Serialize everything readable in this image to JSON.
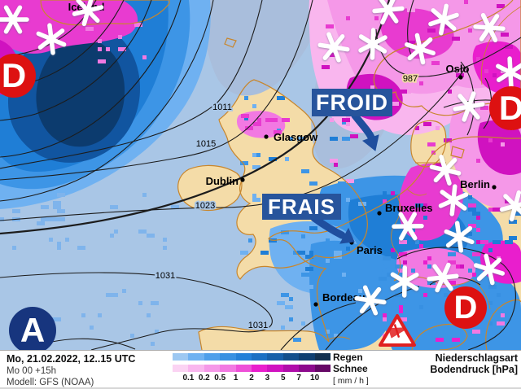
{
  "map": {
    "annotations": {
      "froid": "FROID",
      "frais": "FRAIS"
    },
    "pressure_markers": {
      "low_label": "D",
      "high_label": "A",
      "low_color": "#DD1111",
      "high_color": "#17357E"
    },
    "cities": [
      {
        "name": "Iceland"
      },
      {
        "name": "Glasgow"
      },
      {
        "name": "Dublin"
      },
      {
        "name": "Oslo"
      },
      {
        "name": "Berlin"
      },
      {
        "name": "Bruxelles"
      },
      {
        "name": "Paris"
      },
      {
        "name": "Bordeaux"
      }
    ],
    "isobar_labels": [
      "987",
      "1011",
      "1015",
      "1023",
      "1031",
      "1031"
    ],
    "icons": {
      "snowflake": "six-arm white snowflake",
      "storm_warning": "red triangle wind warning"
    }
  },
  "legend": {
    "rain_label": "Regen",
    "snow_label": "Schnee",
    "unit": "[ mm / h ]",
    "scale_values": [
      "0.1",
      "0.2",
      "0.5",
      "1",
      "2",
      "3",
      "5",
      "7",
      "10"
    ],
    "rain_colors": [
      "#9dc8f2",
      "#70b2f1",
      "#4f9fea",
      "#3790e2",
      "#2380d8",
      "#1b70c4",
      "#1660aa",
      "#124f8d",
      "#0e3f72",
      "#12304f"
    ],
    "snow_colors": [
      "#fbd3f3",
      "#f9b6ee",
      "#f598e8",
      "#f279e2",
      "#ee50d8",
      "#e91ecd",
      "#d012c0",
      "#b00daa",
      "#8d0a8d",
      "#660866"
    ],
    "right_title_line1": "Niederschlagsart",
    "right_title_line2": "Bodendruck [hPa]"
  },
  "footer": {
    "datetime": "Mo, 21.02.2022, 12..15 UTC",
    "run": "Mo 00 +15h",
    "model": "Modell: GFS (NOAA)"
  },
  "colors": {
    "ocean": "#A9C6E6",
    "land": "#F4DCA8",
    "coastline": "#C8862C",
    "annotation_box": "#27549C",
    "arrow": "#1F4E9E"
  }
}
